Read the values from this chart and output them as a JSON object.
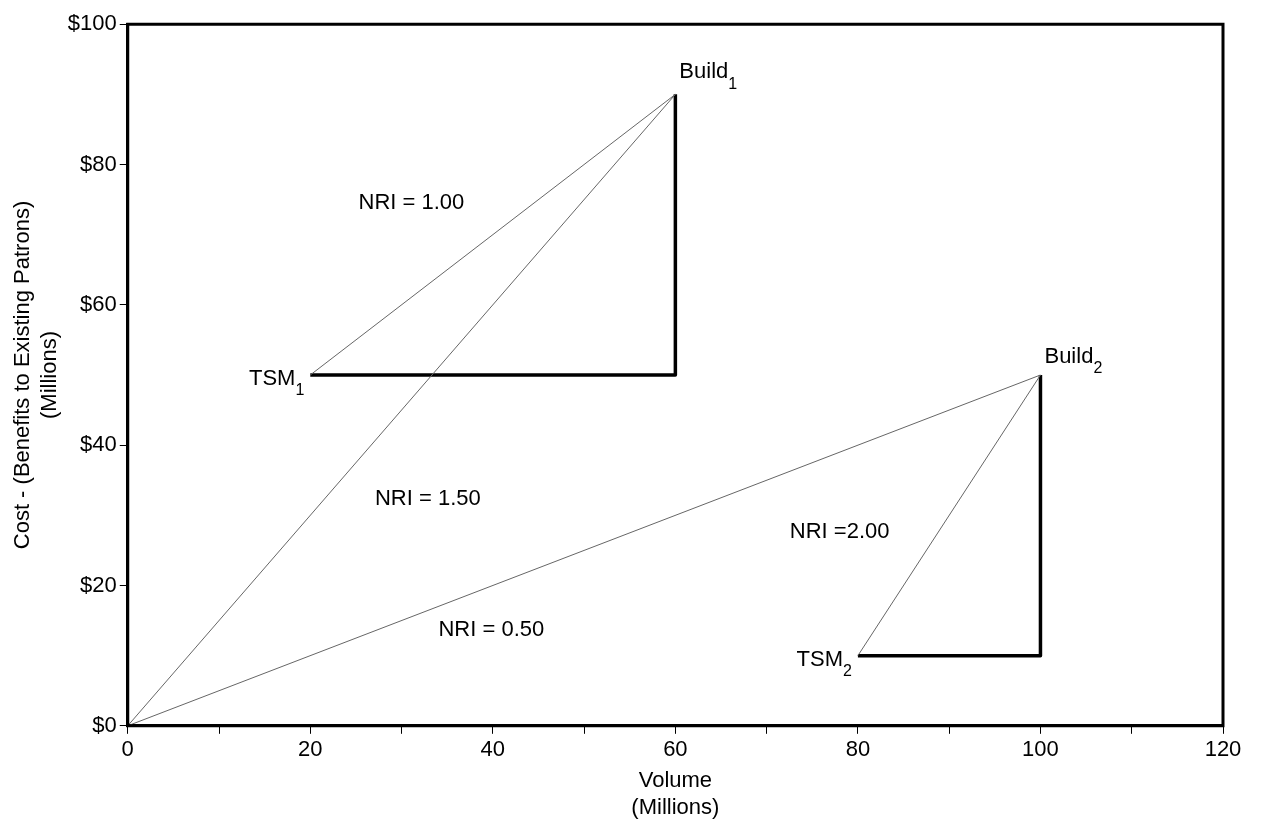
{
  "chart_data": {
    "type": "line",
    "xlabel": "Volume\n(Millions)",
    "ylabel": "Cost - (Benefits to Existing Patrons)\n(Millions)",
    "xlim": [
      0,
      120
    ],
    "ylim": [
      0,
      100
    ],
    "xticks": [
      0,
      {
        "value": 10,
        "label": null
      },
      20,
      {
        "value": 30,
        "label": null
      },
      40,
      {
        "value": 50,
        "label": null
      },
      60,
      {
        "value": 70,
        "label": null
      },
      80,
      {
        "value": 90,
        "label": null
      },
      100,
      {
        "value": 110,
        "label": null
      },
      120
    ],
    "yticks": [
      {
        "value": 0,
        "label": "$0"
      },
      {
        "value": 20,
        "label": "$20"
      },
      {
        "value": 40,
        "label": "$40"
      },
      {
        "value": 60,
        "label": "$60"
      },
      {
        "value": 80,
        "label": "$80"
      },
      {
        "value": 100,
        "label": "$100"
      }
    ],
    "grid": false,
    "legend": false,
    "marker": "none",
    "line_style": "solid",
    "series": [
      {
        "color": "#666666",
        "x": [
          20,
          60
        ],
        "values": [
          50,
          90
        ]
      },
      {
        "color": "#666666",
        "x": [
          0,
          60
        ],
        "values": [
          0,
          90
        ]
      },
      {
        "color": "#666666",
        "x": [
          0,
          100
        ],
        "values": [
          0,
          50
        ]
      },
      {
        "color": "#666666",
        "x": [
          80,
          100
        ],
        "values": [
          10,
          50
        ]
      },
      {
        "color": "#000000",
        "x": [
          20,
          60,
          60
        ],
        "values": [
          50,
          50,
          90
        ]
      },
      {
        "color": "#000000",
        "x": [
          80,
          100,
          100
        ],
        "values": [
          10,
          10,
          50
        ]
      }
    ],
    "annotations": [
      {
        "text": "Build$_{1}$",
        "x": 60,
        "y": 90
      },
      {
        "text": "TSM$_{1}$",
        "x": 20,
        "y": 50
      },
      {
        "text": "Build$_{2}$",
        "x": 100,
        "y": 50
      },
      {
        "text": "TSM$_{2}$",
        "x": 80,
        "y": 10
      },
      "NRI = 1.00",
      "NRI = 1.50",
      "NRI = 0.50",
      "NRI =2.00"
    ]
  }
}
